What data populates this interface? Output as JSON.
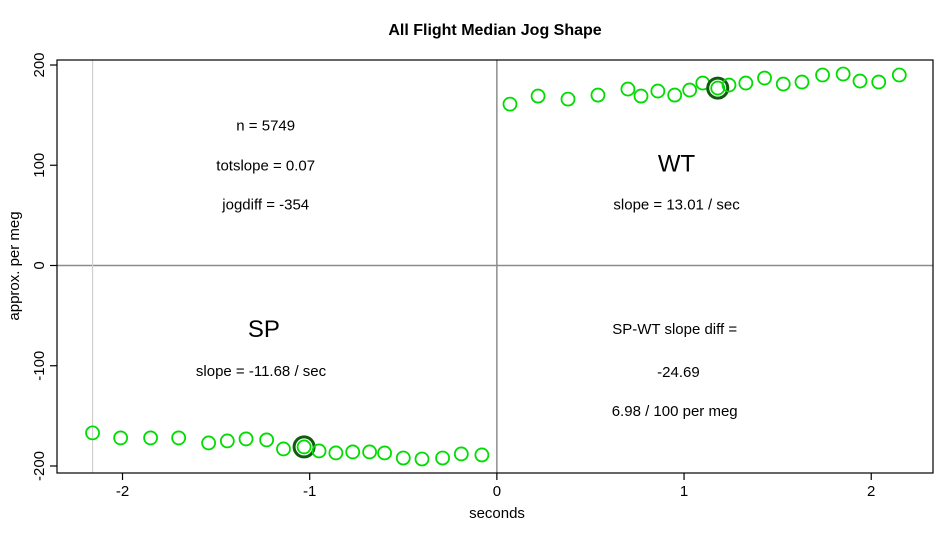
{
  "chart_data": {
    "type": "scatter",
    "title": "All Flight Median Jog Shape",
    "xlabel": "seconds",
    "ylabel": "approx. per meg",
    "xlim": [
      -2.35,
      2.33
    ],
    "ylim": [
      -207,
      205
    ],
    "xticks": [
      -2,
      -1,
      0,
      1,
      2
    ],
    "yticks": [
      -200,
      -100,
      0,
      100,
      200
    ],
    "grid": false,
    "legend": "none",
    "point_color": "#00DC00",
    "highlight_color": "#0F5C0F",
    "axis_color": "#000000",
    "ref_line_color": "#8C8C8C",
    "window_line_color": "#CFCFCF",
    "series": [
      {
        "name": "SP",
        "points": [
          [
            -2.16,
            -167
          ],
          [
            -2.01,
            -172
          ],
          [
            -1.85,
            -172
          ],
          [
            -1.7,
            -172
          ],
          [
            -1.54,
            -177
          ],
          [
            -1.44,
            -175
          ],
          [
            -1.34,
            -173
          ],
          [
            -1.23,
            -174
          ],
          [
            -1.14,
            -183
          ],
          [
            -1.03,
            -181
          ],
          [
            -0.95,
            -185
          ],
          [
            -0.86,
            -187
          ],
          [
            -0.77,
            -186
          ],
          [
            -0.68,
            -186
          ],
          [
            -0.6,
            -187
          ],
          [
            -0.5,
            -192
          ],
          [
            -0.4,
            -193
          ],
          [
            -0.29,
            -192
          ],
          [
            -0.19,
            -188
          ],
          [
            -0.08,
            -189
          ]
        ],
        "highlight_index": 9
      },
      {
        "name": "WT",
        "points": [
          [
            0.07,
            161
          ],
          [
            0.22,
            169
          ],
          [
            0.38,
            166
          ],
          [
            0.54,
            170
          ],
          [
            0.7,
            176
          ],
          [
            0.77,
            169
          ],
          [
            0.86,
            174
          ],
          [
            0.95,
            170
          ],
          [
            1.03,
            175
          ],
          [
            1.1,
            182
          ],
          [
            1.18,
            177
          ],
          [
            1.24,
            180
          ],
          [
            1.33,
            182
          ],
          [
            1.43,
            187
          ],
          [
            1.53,
            181
          ],
          [
            1.63,
            183
          ],
          [
            1.74,
            190
          ],
          [
            1.85,
            191
          ],
          [
            1.94,
            184
          ],
          [
            2.04,
            183
          ],
          [
            2.15,
            190
          ]
        ],
        "highlight_index": 10
      }
    ],
    "ref_lines": [
      {
        "orientation": "h",
        "value": 0,
        "color": "#8C8C8C",
        "width": 1.5
      },
      {
        "orientation": "v",
        "value": 0,
        "color": "#8C8C8C",
        "width": 1.5
      },
      {
        "orientation": "v",
        "value": -2.16,
        "color": "#CFCFCF",
        "width": 1.2
      }
    ],
    "annotations": [
      {
        "x": -1.235,
        "y": 140,
        "text": "n = 5749",
        "size": 15,
        "bold": false
      },
      {
        "x": -1.235,
        "y": 100,
        "text": "totslope = 0.07",
        "size": 15,
        "bold": false
      },
      {
        "x": -1.235,
        "y": 61,
        "text": "jogdiff = -354",
        "size": 15,
        "bold": false
      },
      {
        "x": 0.96,
        "y": 102,
        "text": "WT",
        "size": 24,
        "bold": false
      },
      {
        "x": 0.96,
        "y": 61,
        "text": "slope = 13.01 / sec",
        "size": 15,
        "bold": false
      },
      {
        "x": -1.245,
        "y": -63,
        "text": "SP",
        "size": 24,
        "bold": false
      },
      {
        "x": -1.26,
        "y": -105,
        "text": "slope = -11.68 / sec",
        "size": 15,
        "bold": false
      },
      {
        "x": 0.95,
        "y": -63,
        "text": "SP-WT slope diff =",
        "size": 15,
        "bold": false
      },
      {
        "x": 0.97,
        "y": -106,
        "text": "-24.69",
        "size": 15,
        "bold": false
      },
      {
        "x": 0.95,
        "y": -145,
        "text": "6.98 / 100 per meg",
        "size": 15,
        "bold": false
      }
    ]
  }
}
